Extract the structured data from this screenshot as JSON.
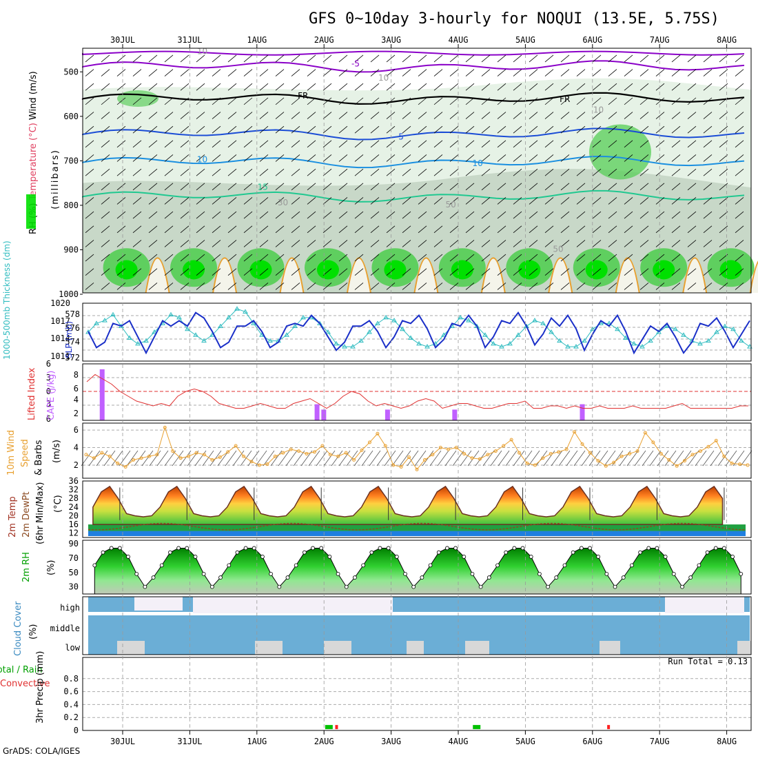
{
  "title": "GFS 0~10day 3-hourly for NOQUI (13.5E, 5.75S)",
  "footer": "GrADS: COLA/IGES",
  "colors": {
    "rh_light": "#e6f2e6",
    "rh_mid": "#c8d8c8",
    "rh_green": "#5fcf5f",
    "rh_bright": "#00e000",
    "slp": "#1a2fc8",
    "thickness": "#30bcc0",
    "cape": "#c060ff",
    "lifted": "#e03030",
    "wind": "#e8a030",
    "cloud": "#6baed6",
    "cloud_gap": "#f4f0f8",
    "precip_total": "#00c000",
    "precip_conv": "#ff2020"
  },
  "chart_data": [
    {
      "type": "heatmap",
      "panel": "upper-air",
      "ylabel_parts": [
        "RH (%)",
        "Temperature (°C)",
        "Wind (m/s)"
      ],
      "yunit": "(millibars)",
      "yticks": [
        "500",
        "600",
        "700",
        "800",
        "900",
        "1000"
      ],
      "ylim": [
        1000,
        450
      ],
      "date_labels": [
        "30JUL",
        "31JUL",
        "1AUG",
        "2AUG",
        "3AUG",
        "4AUG",
        "5AUG",
        "6AUG",
        "7AUG",
        "8AUG"
      ],
      "isotherm_labels": [
        {
          "text": "-5",
          "t": 3.9,
          "p": 488
        },
        {
          "text": "FR",
          "t": 3.1,
          "p": 560
        },
        {
          "text": "FR",
          "t": 7.0,
          "p": 568
        },
        {
          "text": "5",
          "t": 4.6,
          "p": 652
        },
        {
          "text": "10",
          "t": 1.6,
          "p": 703
        },
        {
          "text": "10",
          "t": 5.7,
          "p": 712
        },
        {
          "text": "15",
          "t": 2.5,
          "p": 765
        },
        {
          "text": "10",
          "t": 1.6,
          "p": 460
        },
        {
          "text": "10",
          "t": 4.3,
          "p": 520
        },
        {
          "text": "10",
          "t": 7.5,
          "p": 592
        },
        {
          "text": "30",
          "t": 2.8,
          "p": 800
        },
        {
          "text": "50",
          "t": 5.3,
          "p": 805
        },
        {
          "text": "50",
          "t": 6.9,
          "p": 905
        }
      ]
    },
    {
      "type": "line",
      "panel": "slp-thickness",
      "ylabel_left": "1000-500mb Thickness (dm)",
      "ylabel_right": "SLP (mb)",
      "yticks_left": [
        "578",
        "576",
        "574",
        "572"
      ],
      "yticks_right": [
        "1020",
        "1017",
        "1014",
        "1011"
      ],
      "series": [
        {
          "name": "SLP (mb)",
          "values": [
            1015,
            1012,
            1013,
            1016.5,
            1016,
            1017,
            1014,
            1011,
            1014,
            1017,
            1016,
            1017,
            1016,
            1018.5,
            1017.5,
            1015,
            1012,
            1013,
            1016,
            1016,
            1017,
            1015,
            1012,
            1013,
            1016,
            1016.5,
            1016,
            1018,
            1016.5,
            1014,
            1011.5,
            1013,
            1016,
            1016,
            1017,
            1015,
            1012,
            1014,
            1017,
            1016.5,
            1018,
            1015.5,
            1012,
            1013.5,
            1016.5,
            1016,
            1018,
            1016,
            1012,
            1014,
            1017,
            1016.5,
            1018.5,
            1016,
            1012.5,
            1014.5,
            1017.5,
            1016,
            1018,
            1015.5,
            1011.5,
            1014.5,
            1017,
            1016,
            1018,
            1015,
            1011,
            1013.5,
            1016,
            1015,
            1016.5,
            1014,
            1011,
            1013,
            1016.5,
            1016,
            1017.5,
            1015,
            1012,
            1014.5,
            1017
          ]
        },
        {
          "name": "Thickness (dm)",
          "values": [
            575.5,
            577,
            577.5,
            578.5,
            576.5,
            574.5,
            573.5,
            574,
            575.5,
            577,
            578.5,
            578,
            576,
            575,
            574,
            575,
            576.5,
            578,
            579.5,
            579,
            577,
            575,
            574,
            574,
            575,
            576.5,
            578,
            578,
            577,
            575.5,
            573.5,
            573,
            573,
            574,
            575.5,
            577,
            578,
            577.5,
            576,
            574.5,
            573.5,
            573,
            573.5,
            575,
            576.5,
            578,
            577.5,
            576.5,
            575,
            573.5,
            573,
            573.5,
            575,
            576.5,
            577.5,
            577,
            575.5,
            574,
            573,
            573,
            574,
            576,
            577,
            577,
            576,
            574.5,
            573.5,
            573,
            574,
            575.5,
            576.5,
            576,
            575,
            574,
            573.5,
            574,
            575.5,
            576.5,
            576,
            574,
            573
          ]
        }
      ]
    },
    {
      "type": "bar",
      "panel": "cape-lifted",
      "ylabel_left": "Lifted Index",
      "ylabel_right": "CAPE (J/kg)",
      "yticks_left": [
        "6",
        "3",
        "0",
        "3",
        "6"
      ],
      "yticks_right": [
        "8",
        "6",
        "4",
        "2"
      ],
      "cape_bars": [
        {
          "t": 0.1,
          "value": 9.5
        },
        {
          "t": 3.3,
          "value": 3
        },
        {
          "t": 3.4,
          "value": 2
        },
        {
          "t": 4.35,
          "value": 2
        },
        {
          "t": 5.35,
          "value": 2
        },
        {
          "t": 7.25,
          "value": 3
        },
        {
          "t": 9.95,
          "value": 2
        }
      ],
      "lifted_index": [
        -2,
        -3.5,
        -2.5,
        -1.5,
        0,
        1,
        2,
        2.5,
        3,
        2.5,
        3,
        1,
        0,
        -0.5,
        0,
        1,
        2.5,
        3,
        3.5,
        3.5,
        3,
        2.5,
        3,
        3.5,
        3.5,
        2.5,
        2,
        1.5,
        2.5,
        3.5,
        2.5,
        1,
        0,
        0.5,
        2,
        3,
        2.5,
        3,
        3.5,
        3,
        2,
        1.5,
        2,
        3.5,
        3,
        2.5,
        2.5,
        3,
        3.5,
        3.5,
        3,
        2.5,
        2.5,
        2,
        3.5,
        3.5,
        3,
        3,
        3.5,
        3,
        3.5,
        3.5,
        3,
        3.5,
        3.5,
        3.5,
        3,
        3.5,
        3.5,
        3.5,
        3.5,
        3,
        2.5,
        3.5,
        3.5,
        3.5,
        3.5,
        3.5,
        3.5,
        3,
        3
      ]
    },
    {
      "type": "line",
      "panel": "10m-wind",
      "ylabel": "10m Wind Speed & Barbs",
      "yunit": "(m/s)",
      "yticks": [
        "6",
        "4",
        "2"
      ],
      "ylim": [
        0.5,
        6.8
      ],
      "values": [
        3.2,
        2.8,
        3.4,
        3.0,
        2.2,
        1.8,
        2.6,
        2.8,
        3.0,
        3.2,
        6.3,
        3.6,
        2.8,
        3.0,
        3.4,
        3.2,
        2.6,
        2.9,
        3.5,
        4.2,
        3.0,
        2.4,
        2.0,
        2.1,
        3.0,
        3.4,
        3.8,
        3.6,
        3.3,
        3.5,
        4.2,
        3.2,
        3.0,
        3.4,
        2.6,
        3.7,
        4.6,
        5.6,
        4.2,
        2.0,
        1.8,
        2.9,
        1.5,
        2.6,
        3.2,
        4.0,
        3.8,
        4.0,
        3.3,
        2.8,
        2.7,
        3.2,
        3.6,
        4.2,
        4.9,
        3.4,
        2.2,
        2.0,
        2.8,
        3.3,
        3.5,
        3.8,
        5.8,
        4.4,
        3.4,
        2.5,
        1.9,
        2.3,
        3.0,
        3.3,
        3.6,
        5.7,
        4.6,
        3.3,
        2.6,
        1.9,
        2.5,
        3.2,
        3.6,
        4.1,
        4.8,
        3.0,
        2.2,
        2.1,
        2.0
      ]
    },
    {
      "type": "area",
      "panel": "2m-temp",
      "ylabel": "2m Temp 2m DewPt (6hr Min/Max)",
      "yunit": "(°C)",
      "yticks": [
        "36",
        "32",
        "28",
        "24",
        "20",
        "16",
        "12"
      ],
      "ylim": [
        10,
        36
      ],
      "temp_cycle": [
        21,
        20,
        19.5,
        20,
        24,
        31,
        33.5,
        28,
        21
      ],
      "dewpt": 15
    },
    {
      "type": "area",
      "panel": "2m-rh",
      "ylabel": "2m RH",
      "yunit": "(%)",
      "yticks": [
        "90",
        "70",
        "50",
        "30"
      ],
      "ylim": [
        20,
        95
      ],
      "rh_cycle": [
        43,
        60,
        78,
        84,
        84,
        72,
        48,
        30,
        45
      ]
    },
    {
      "type": "bar",
      "panel": "cloud-cover",
      "ylabel": "Cloud Cover",
      "yunit": "(%)",
      "layers": [
        "high",
        "middle",
        "low"
      ]
    },
    {
      "type": "bar",
      "panel": "3hr-precip",
      "ylabel_left": "Total / Rain",
      "ylabel_left2": "Convective",
      "ylabel": "3hr Precip (mm)",
      "yticks": [
        "0.8",
        "0.6",
        "0.4",
        "0.2",
        "0"
      ],
      "ylim": [
        0,
        1
      ],
      "run_total_label": "Run Total = 0.13",
      "bars": [
        {
          "t": 3.2,
          "value": 0.02,
          "kind": "total"
        },
        {
          "t": 3.35,
          "value": 0.02,
          "kind": "conv"
        },
        {
          "t": 5.4,
          "value": 0.02,
          "kind": "total"
        },
        {
          "t": 7.4,
          "value": 0.02,
          "kind": "conv"
        }
      ]
    }
  ]
}
